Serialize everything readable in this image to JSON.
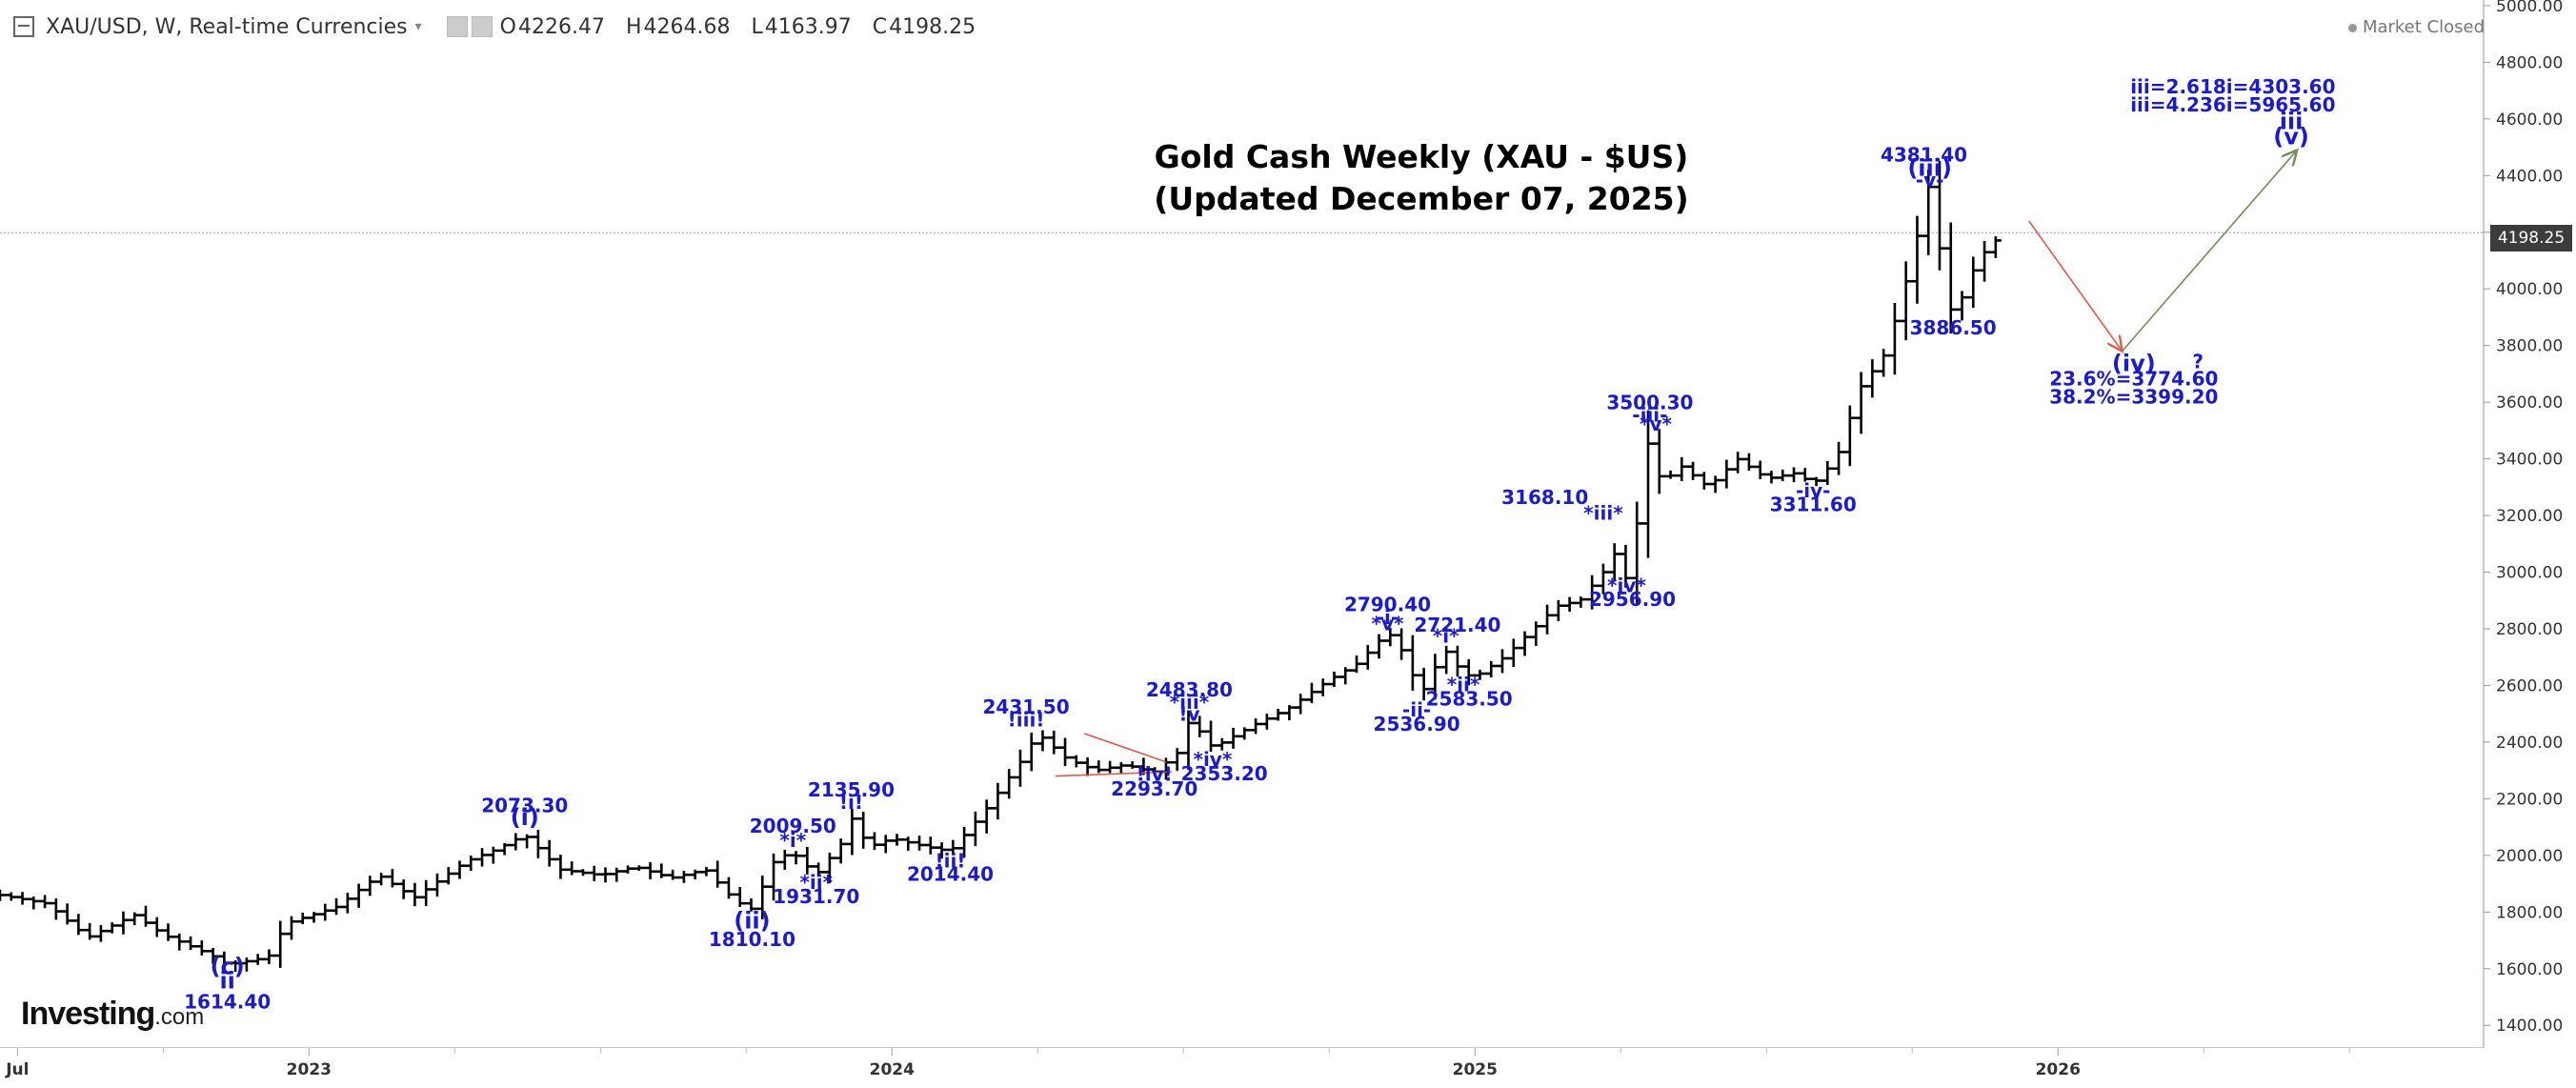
{
  "header": {
    "symbol": "XAU/USD, W, Real-time Currencies",
    "open_label": "O",
    "open": "4226.47",
    "high_label": "H",
    "high": "4264.68",
    "low_label": "L",
    "low": "4163.97",
    "close_label": "C",
    "close": "4198.25",
    "status": "Market Closed"
  },
  "last_price_label": "4198.25",
  "logo": {
    "brand": "Investing",
    "suffix": ".com"
  },
  "chart_data": {
    "type": "candlestick",
    "title_line1": "Gold Cash Weekly (XAU - $US)",
    "title_line2": "(Updated December 07, 2025)",
    "ylim": [
      1320,
      5020
    ],
    "y_ticks": [
      1400,
      1600,
      1800,
      2000,
      2200,
      2400,
      2600,
      2800,
      3000,
      3200,
      3400,
      3600,
      3800,
      4000,
      4200,
      4400,
      4600,
      4800,
      5000
    ],
    "y_tick_labels": [
      "1400.00",
      "1600.00",
      "1800.00",
      "2000.00",
      "2200.00",
      "2400.00",
      "2600.00",
      "2800.00",
      "3000.00",
      "3200.00",
      "3400.00",
      "3600.00",
      "3800.00",
      "4000.00",
      "4200.00",
      "4400.00",
      "4600.00",
      "4800.00",
      "5000.00"
    ],
    "xlim": [
      2022.47,
      2026.73
    ],
    "x_ticks": [
      2022.5,
      2023.0,
      2024.0,
      2025.0,
      2026.0
    ],
    "x_tick_labels": [
      "Jul",
      "2023",
      "2024",
      "2025",
      "2026"
    ],
    "last_price": 4198.25,
    "anchors": [
      [
        2022.47,
        1860
      ],
      [
        2022.55,
        1830
      ],
      [
        2022.62,
        1710
      ],
      [
        2022.7,
        1790
      ],
      [
        2022.75,
        1720
      ],
      [
        2022.83,
        1650
      ],
      [
        2022.86,
        1614
      ],
      [
        2022.93,
        1640
      ],
      [
        2022.96,
        1760
      ],
      [
        2023.05,
        1820
      ],
      [
        2023.08,
        1870
      ],
      [
        2023.12,
        1930
      ],
      [
        2023.18,
        1850
      ],
      [
        2023.27,
        1980
      ],
      [
        2023.32,
        2020
      ],
      [
        2023.37,
        2073
      ],
      [
        2023.43,
        1950
      ],
      [
        2023.5,
        1930
      ],
      [
        2023.56,
        1960
      ],
      [
        2023.62,
        1920
      ],
      [
        2023.68,
        1950
      ],
      [
        2023.73,
        1840
      ],
      [
        2023.76,
        1810
      ],
      [
        2023.8,
        1990
      ],
      [
        2023.83,
        2009
      ],
      [
        2023.87,
        1931
      ],
      [
        2023.92,
        2060
      ],
      [
        2023.93,
        2135
      ],
      [
        2023.96,
        2030
      ],
      [
        2024.0,
        2060
      ],
      [
        2024.06,
        2030
      ],
      [
        2024.1,
        2014
      ],
      [
        2024.16,
        2160
      ],
      [
        2024.22,
        2330
      ],
      [
        2024.25,
        2431
      ],
      [
        2024.3,
        2340
      ],
      [
        2024.35,
        2300
      ],
      [
        2024.4,
        2320
      ],
      [
        2024.45,
        2294
      ],
      [
        2024.5,
        2380
      ],
      [
        2024.51,
        2483
      ],
      [
        2024.55,
        2380
      ],
      [
        2024.62,
        2460
      ],
      [
        2024.68,
        2520
      ],
      [
        2024.75,
        2620
      ],
      [
        2024.8,
        2680
      ],
      [
        2024.85,
        2790
      ],
      [
        2024.89,
        2680
      ],
      [
        2024.9,
        2537
      ],
      [
        2024.93,
        2660
      ],
      [
        2024.95,
        2721
      ],
      [
        2024.98,
        2640
      ],
      [
        2025.0,
        2630
      ],
      [
        2025.05,
        2700
      ],
      [
        2025.1,
        2800
      ],
      [
        2025.14,
        2880
      ],
      [
        2025.18,
        2900
      ],
      [
        2025.22,
        3000
      ],
      [
        2025.25,
        3100
      ],
      [
        2025.26,
        2957
      ],
      [
        2025.28,
        3200
      ],
      [
        2025.3,
        3500
      ],
      [
        2025.32,
        3300
      ],
      [
        2025.35,
        3380
      ],
      [
        2025.4,
        3300
      ],
      [
        2025.45,
        3400
      ],
      [
        2025.5,
        3330
      ],
      [
        2025.55,
        3350
      ],
      [
        2025.58,
        3311
      ],
      [
        2025.62,
        3400
      ],
      [
        2025.66,
        3650
      ],
      [
        2025.7,
        3760
      ],
      [
        2025.73,
        3950
      ],
      [
        2025.76,
        4200
      ],
      [
        2025.78,
        4381
      ],
      [
        2025.8,
        4100
      ],
      [
        2025.82,
        3886
      ],
      [
        2025.85,
        4050
      ],
      [
        2025.88,
        4150
      ],
      [
        2025.91,
        4198
      ]
    ],
    "wave_labels": [
      {
        "text": "(c)",
        "x": 2022.86,
        "y": 1580,
        "side": "below"
      },
      {
        "text": "ii",
        "x": 2022.86,
        "y": 1530,
        "side": "below"
      },
      {
        "text": "1614.40",
        "x": 2022.86,
        "y": 1460,
        "side": "below"
      },
      {
        "text": "2073.30",
        "x": 2023.37,
        "y": 2152,
        "side": "above"
      },
      {
        "text": "(i)",
        "x": 2023.37,
        "y": 2107,
        "side": "above"
      },
      {
        "text": "(ii)",
        "x": 2023.76,
        "y": 1742,
        "side": "below"
      },
      {
        "text": "1810.10",
        "x": 2023.76,
        "y": 1680,
        "side": "below"
      },
      {
        "text": "2009.50",
        "x": 2023.83,
        "y": 2080,
        "side": "above"
      },
      {
        "text": "*i*",
        "x": 2023.83,
        "y": 2030,
        "side": "above"
      },
      {
        "text": "*ii*",
        "x": 2023.87,
        "y": 1882,
        "side": "below"
      },
      {
        "text": "1931.70",
        "x": 2023.87,
        "y": 1832,
        "side": "below"
      },
      {
        "text": "2135.90",
        "x": 2023.93,
        "y": 2208,
        "side": "above"
      },
      {
        "text": "!i!",
        "x": 2023.93,
        "y": 2165,
        "side": "above"
      },
      {
        "text": "!ii!",
        "x": 2024.1,
        "y": 1958,
        "side": "below"
      },
      {
        "text": "2014.40",
        "x": 2024.1,
        "y": 1910,
        "side": "below"
      },
      {
        "text": "2431.50",
        "x": 2024.23,
        "y": 2500,
        "side": "above"
      },
      {
        "text": "!iii!",
        "x": 2024.23,
        "y": 2455,
        "side": "above"
      },
      {
        "text": "!iv!",
        "x": 2024.45,
        "y": 2264,
        "side": "below"
      },
      {
        "text": "2293.70",
        "x": 2024.45,
        "y": 2212,
        "side": "below"
      },
      {
        "text": "*iv*",
        "x": 2024.55,
        "y": 2315,
        "side": "below"
      },
      {
        "text": "2353.20",
        "x": 2024.57,
        "y": 2265,
        "side": "below"
      },
      {
        "text": "2483.80",
        "x": 2024.51,
        "y": 2562,
        "side": "above"
      },
      {
        "text": "*iii*",
        "x": 2024.51,
        "y": 2518,
        "side": "above"
      },
      {
        "text": "!v",
        "x": 2024.51,
        "y": 2475,
        "side": "above"
      },
      {
        "text": "2790.40",
        "x": 2024.85,
        "y": 2862,
        "side": "above"
      },
      {
        "text": "-i-",
        "x": 2024.85,
        "y": 2817,
        "side": "above"
      },
      {
        "text": "*v*",
        "x": 2024.85,
        "y": 2795,
        "side": "above"
      },
      {
        "text": "2721.40",
        "x": 2024.97,
        "y": 2790,
        "side": "above"
      },
      {
        "text": "*i*",
        "x": 2024.95,
        "y": 2752,
        "side": "above"
      },
      {
        "text": "-ii-",
        "x": 2024.9,
        "y": 2490,
        "side": "below"
      },
      {
        "text": "2536.90",
        "x": 2024.9,
        "y": 2440,
        "side": "below"
      },
      {
        "text": "*ii*",
        "x": 2024.98,
        "y": 2580,
        "side": "below"
      },
      {
        "text": "2583.50",
        "x": 2024.99,
        "y": 2530,
        "side": "below"
      },
      {
        "text": "3168.10",
        "x": 2025.12,
        "y": 3240,
        "side": "above"
      },
      {
        "text": "*iii*",
        "x": 2025.22,
        "y": 3185,
        "side": "above"
      },
      {
        "text": "*iv*",
        "x": 2025.26,
        "y": 2930,
        "side": "below"
      },
      {
        "text": "2956.90",
        "x": 2025.27,
        "y": 2880,
        "side": "below"
      },
      {
        "text": "3500.30",
        "x": 2025.3,
        "y": 3575,
        "side": "above"
      },
      {
        "text": "-iii-",
        "x": 2025.3,
        "y": 3532,
        "side": "above"
      },
      {
        "text": "*v*",
        "x": 2025.31,
        "y": 3500,
        "side": "above"
      },
      {
        "text": "-iv-",
        "x": 2025.58,
        "y": 3265,
        "side": "below"
      },
      {
        "text": "3311.60",
        "x": 2025.58,
        "y": 3215,
        "side": "below"
      },
      {
        "text": "4381.40",
        "x": 2025.77,
        "y": 4450,
        "side": "above"
      },
      {
        "text": "(iii)",
        "x": 2025.78,
        "y": 4400,
        "side": "above"
      },
      {
        "text": "-v-",
        "x": 2025.78,
        "y": 4360,
        "side": "above"
      },
      {
        "text": "3886.50",
        "x": 2025.82,
        "y": 3840,
        "side": "below"
      },
      {
        "text": "(iv)",
        "x": 2026.13,
        "y": 3710,
        "side": "above"
      },
      {
        "text": "?",
        "x": 2026.24,
        "y": 3720,
        "side": "above"
      },
      {
        "text": "23.6%=3774.60",
        "x": 2026.13,
        "y": 3660,
        "side": "below"
      },
      {
        "text": "38.2%=3399.20",
        "x": 2026.13,
        "y": 3595,
        "side": "below"
      },
      {
        "text": "iii=2.618i=4303.60",
        "x": 2026.3,
        "y": 4690,
        "side": "above"
      },
      {
        "text": "iii=4.236i=5965.60",
        "x": 2026.3,
        "y": 4626,
        "side": "above"
      },
      {
        "text": "iii",
        "x": 2026.4,
        "y": 4565,
        "side": "above"
      },
      {
        "text": "(v)",
        "x": 2026.4,
        "y": 4510,
        "side": "above"
      }
    ],
    "projection": {
      "from": [
        2025.95,
        4240
      ],
      "to": [
        2026.11,
        3780
      ],
      "target": [
        2026.41,
        4490
      ]
    },
    "triangle": [
      [
        2024.33,
        2430
      ],
      [
        2024.47,
        2330
      ],
      [
        2024.28,
        2280
      ],
      [
        2024.48,
        2295
      ]
    ],
    "colors": {
      "bars": "#000000",
      "labels": "#1a1ad6",
      "down_arrow": "#e05a4e",
      "up_arrow": "#6f8f55",
      "triangle": "#e05a4e",
      "price_line": "#8fa0e8"
    }
  }
}
